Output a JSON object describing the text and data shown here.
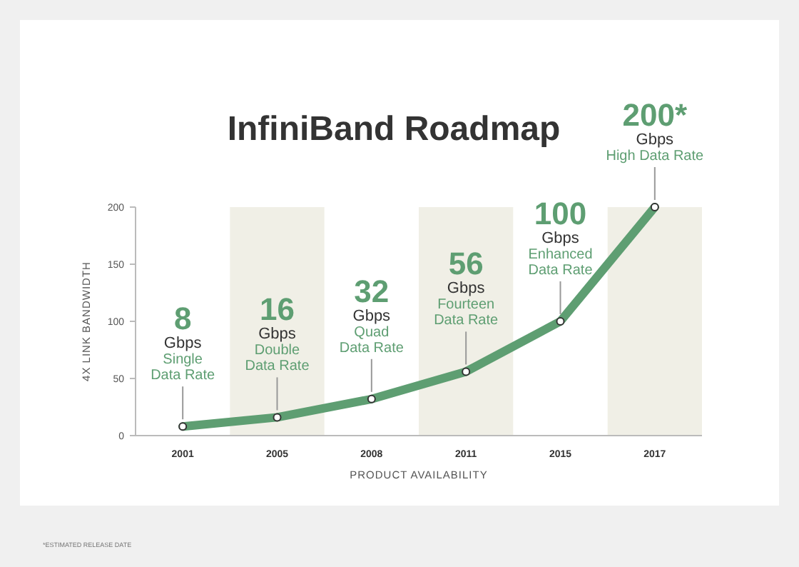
{
  "chart_data": {
    "type": "line",
    "title": "InfiniBand Roadmap",
    "xlabel": "PRODUCT AVAILABILITY",
    "ylabel": "4X LINK BANDWIDTH",
    "categories": [
      "2001",
      "2005",
      "2008",
      "2011",
      "2015",
      "2017"
    ],
    "series": [
      {
        "color": "#5e9e72",
        "values": [
          8,
          16,
          32,
          56,
          100,
          200
        ]
      }
    ],
    "value_labels": [
      "8",
      "16",
      "32",
      "56",
      "100",
      "200*"
    ],
    "ylim": [
      0,
      200
    ],
    "yticks": [
      0,
      50,
      100,
      150,
      200
    ],
    "grid": false,
    "marker": "circle",
    "line_style": "solid",
    "bands": [
      {
        "axis": "x",
        "from": "2005",
        "to": "2005",
        "color": "#f0efe6"
      },
      {
        "axis": "x",
        "from": "2011",
        "to": "2011",
        "color": "#f0efe6"
      },
      {
        "axis": "x",
        "from": "2017",
        "to": "2017",
        "color": "#f0efe6"
      }
    ],
    "annotations": [
      {
        "text": "Gbps\nSingle\nData Rate",
        "x": "2001",
        "y": 8
      },
      {
        "text": "Gbps\nDouble\nData Rate",
        "x": "2005",
        "y": 16
      },
      {
        "text": "Gbps\nQuad\nData Rate",
        "x": "2008",
        "y": 32
      },
      {
        "text": "Gbps\nFourteen\nData Rate",
        "x": "2011",
        "y": 56
      },
      {
        "text": "Gbps\nEnhanced\nData Rate",
        "x": "2015",
        "y": 100
      },
      {
        "text": "Gbps\nHigh Data Rate",
        "x": "2017",
        "y": 200
      },
      "*ESTIMATED RELEASE DATE"
    ]
  }
}
